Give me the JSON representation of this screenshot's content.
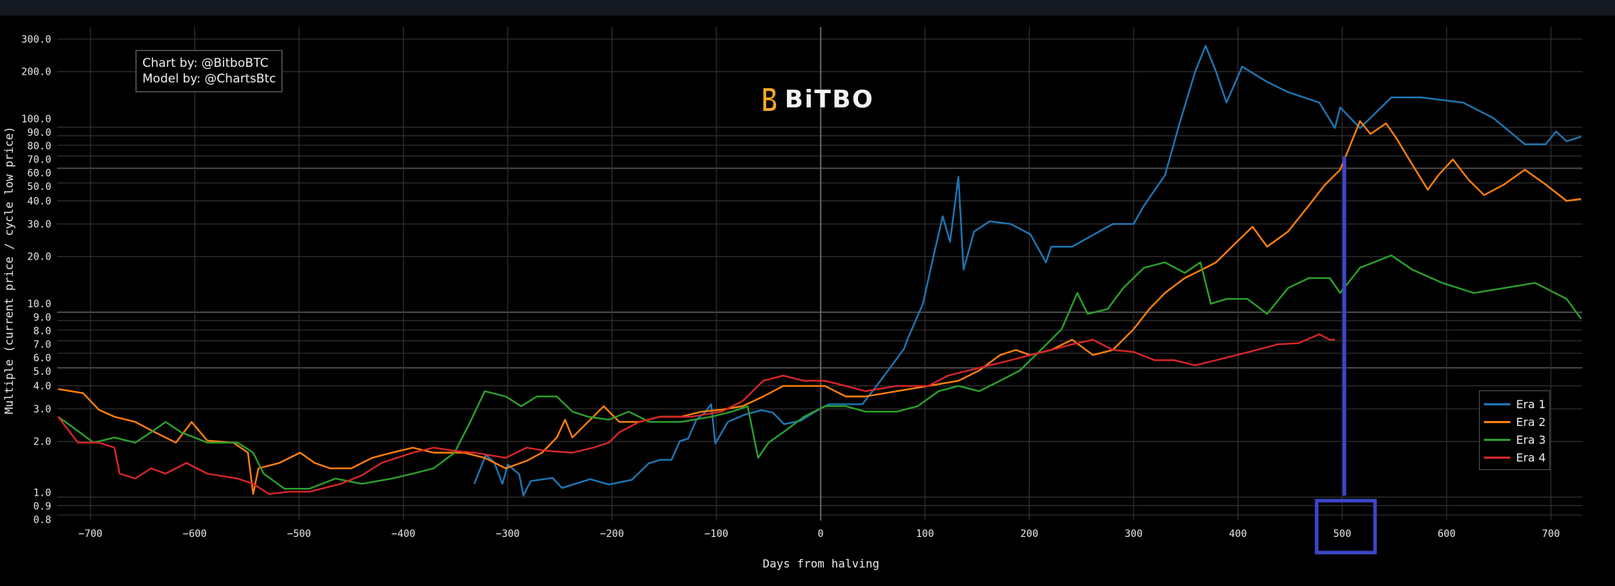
{
  "chart_data": {
    "type": "line",
    "title": "",
    "xlabel": "Days from halving",
    "ylabel": "Multiple (current price / cycle low price)",
    "xlim": [
      -730,
      730
    ],
    "ylim": [
      0.75,
      340
    ],
    "yscale": "log",
    "grid": true,
    "legend_position": "bottom-right",
    "x_ticks": [
      -700,
      -600,
      -500,
      -400,
      -300,
      -200,
      -100,
      0,
      100,
      200,
      300,
      400,
      500,
      600,
      700
    ],
    "x_tick_labels": [
      "−700",
      "−600",
      "−500",
      "−400",
      "−300",
      "−200",
      "−100",
      "0",
      "100",
      "200",
      "300",
      "400",
      "500",
      "600",
      "700"
    ],
    "y_ticks": [
      300,
      200,
      100,
      90,
      80,
      70,
      60,
      50,
      40,
      30,
      20,
      10,
      9,
      8,
      7,
      6,
      5,
      4,
      3,
      2,
      1,
      0.9,
      0.8
    ],
    "y_tick_labels": [
      "300.0",
      "200.0",
      "100.0",
      "90.0",
      "80.0",
      "70.0",
      "60.0",
      "50.0",
      "40.0",
      "30.0",
      "20.0",
      "10.0",
      "9.0",
      "8.0",
      "7.0",
      "6.0",
      "5.0",
      "4.0",
      "3.0",
      "2.0",
      "1.0",
      "0.9",
      "0.8"
    ],
    "series": [
      {
        "name": "Era 1",
        "color": "#1f77b4",
        "points": [
          [
            -332,
            1.18
          ],
          [
            -321,
            1.69
          ],
          [
            -313,
            1.54
          ],
          [
            -305,
            1.18
          ],
          [
            -300,
            1.5
          ],
          [
            -289,
            1.33
          ],
          [
            -285,
            1.02
          ],
          [
            -278,
            1.22
          ],
          [
            -257,
            1.27
          ],
          [
            -248,
            1.12
          ],
          [
            -221,
            1.25
          ],
          [
            -203,
            1.17
          ],
          [
            -181,
            1.24
          ],
          [
            -165,
            1.52
          ],
          [
            -154,
            1.59
          ],
          [
            -143,
            1.59
          ],
          [
            -135,
            2.01
          ],
          [
            -127,
            2.07
          ],
          [
            -119,
            2.63
          ],
          [
            -111,
            2.87
          ],
          [
            -105,
            3.18
          ],
          [
            -101,
            1.95
          ],
          [
            -89,
            2.55
          ],
          [
            -73,
            2.79
          ],
          [
            -57,
            2.95
          ],
          [
            -46,
            2.87
          ],
          [
            -35,
            2.48
          ],
          [
            -19,
            2.59
          ],
          [
            -3,
            2.95
          ],
          [
            8,
            3.18
          ],
          [
            40,
            3.18
          ],
          [
            54,
            4.02
          ],
          [
            65,
            4.87
          ],
          [
            80,
            6.35
          ],
          [
            83,
            7.1
          ],
          [
            98,
            11.1
          ],
          [
            108,
            19.9
          ],
          [
            117,
            33
          ],
          [
            124,
            24
          ],
          [
            132,
            54
          ],
          [
            137,
            17
          ],
          [
            147,
            27.3
          ],
          [
            162,
            31
          ],
          [
            182,
            30
          ],
          [
            201,
            26.4
          ],
          [
            216,
            18.6
          ],
          [
            221,
            22.6
          ],
          [
            241,
            22.6
          ],
          [
            280,
            30
          ],
          [
            300,
            30
          ],
          [
            310,
            37.8
          ],
          [
            330,
            55
          ],
          [
            344,
            105
          ],
          [
            359,
            200
          ],
          [
            369,
            276
          ],
          [
            379,
            200
          ],
          [
            389,
            136
          ],
          [
            404,
            213
          ],
          [
            428,
            176
          ],
          [
            448,
            155
          ],
          [
            478,
            136
          ],
          [
            493,
            99
          ],
          [
            498,
            128
          ],
          [
            517,
            99
          ],
          [
            547,
            145
          ],
          [
            576,
            145
          ],
          [
            616,
            136
          ],
          [
            645,
            112
          ],
          [
            675,
            81
          ],
          [
            695,
            81
          ],
          [
            705,
            95
          ],
          [
            715,
            84
          ],
          [
            729,
            89
          ]
        ]
      },
      {
        "name": "Era 2",
        "color": "#ff7f0e",
        "points": [
          [
            -731,
            3.84
          ],
          [
            -707,
            3.65
          ],
          [
            -692,
            2.97
          ],
          [
            -677,
            2.72
          ],
          [
            -657,
            2.55
          ],
          [
            -638,
            2.24
          ],
          [
            -618,
            1.97
          ],
          [
            -603,
            2.55
          ],
          [
            -588,
            2.02
          ],
          [
            -563,
            1.97
          ],
          [
            -549,
            1.74
          ],
          [
            -544,
            1.04
          ],
          [
            -539,
            1.43
          ],
          [
            -519,
            1.53
          ],
          [
            -499,
            1.74
          ],
          [
            -485,
            1.53
          ],
          [
            -470,
            1.43
          ],
          [
            -450,
            1.43
          ],
          [
            -430,
            1.63
          ],
          [
            -411,
            1.74
          ],
          [
            -391,
            1.85
          ],
          [
            -371,
            1.74
          ],
          [
            -342,
            1.74
          ],
          [
            -322,
            1.63
          ],
          [
            -302,
            1.43
          ],
          [
            -282,
            1.57
          ],
          [
            -267,
            1.74
          ],
          [
            -253,
            2.1
          ],
          [
            -245,
            2.62
          ],
          [
            -238,
            2.1
          ],
          [
            -223,
            2.55
          ],
          [
            -208,
            3.1
          ],
          [
            -193,
            2.55
          ],
          [
            -174,
            2.55
          ],
          [
            -154,
            2.72
          ],
          [
            -134,
            2.72
          ],
          [
            -114,
            2.9
          ],
          [
            -95,
            2.97
          ],
          [
            -75,
            3.1
          ],
          [
            -55,
            3.5
          ],
          [
            -36,
            3.99
          ],
          [
            -16,
            3.99
          ],
          [
            4,
            3.99
          ],
          [
            24,
            3.5
          ],
          [
            43,
            3.5
          ],
          [
            73,
            3.74
          ],
          [
            103,
            3.99
          ],
          [
            132,
            4.26
          ],
          [
            152,
            4.84
          ],
          [
            172,
            5.87
          ],
          [
            187,
            6.25
          ],
          [
            201,
            5.87
          ],
          [
            221,
            6.25
          ],
          [
            241,
            7.1
          ],
          [
            261,
            5.87
          ],
          [
            280,
            6.25
          ],
          [
            300,
            8.1
          ],
          [
            315,
            10.4
          ],
          [
            330,
            12.7
          ],
          [
            349,
            15.3
          ],
          [
            369,
            17.4
          ],
          [
            379,
            18.6
          ],
          [
            399,
            24
          ],
          [
            414,
            29
          ],
          [
            428,
            22.6
          ],
          [
            448,
            27.3
          ],
          [
            468,
            37.8
          ],
          [
            483,
            48.6
          ],
          [
            498,
            59
          ],
          [
            508,
            81
          ],
          [
            517,
            108
          ],
          [
            527,
            92
          ],
          [
            542,
            105
          ],
          [
            552,
            87
          ],
          [
            567,
            63
          ],
          [
            582,
            46
          ],
          [
            592,
            55
          ],
          [
            606,
            67
          ],
          [
            621,
            52
          ],
          [
            636,
            43
          ],
          [
            655,
            49
          ],
          [
            675,
            59
          ],
          [
            695,
            49
          ],
          [
            715,
            40
          ],
          [
            729,
            41
          ]
        ]
      },
      {
        "name": "Era 3",
        "color": "#2ca02c",
        "points": [
          [
            -731,
            2.72
          ],
          [
            -717,
            2.39
          ],
          [
            -697,
            1.97
          ],
          [
            -677,
            2.1
          ],
          [
            -657,
            1.97
          ],
          [
            -642,
            2.24
          ],
          [
            -628,
            2.55
          ],
          [
            -613,
            2.24
          ],
          [
            -588,
            1.97
          ],
          [
            -559,
            1.97
          ],
          [
            -544,
            1.74
          ],
          [
            -534,
            1.34
          ],
          [
            -514,
            1.11
          ],
          [
            -490,
            1.11
          ],
          [
            -465,
            1.26
          ],
          [
            -440,
            1.18
          ],
          [
            -411,
            1.26
          ],
          [
            -391,
            1.34
          ],
          [
            -371,
            1.43
          ],
          [
            -351,
            1.74
          ],
          [
            -336,
            2.55
          ],
          [
            -322,
            3.74
          ],
          [
            -302,
            3.5
          ],
          [
            -287,
            3.1
          ],
          [
            -272,
            3.5
          ],
          [
            -253,
            3.5
          ],
          [
            -238,
            2.9
          ],
          [
            -223,
            2.72
          ],
          [
            -203,
            2.62
          ],
          [
            -184,
            2.9
          ],
          [
            -164,
            2.55
          ],
          [
            -134,
            2.55
          ],
          [
            -105,
            2.72
          ],
          [
            -85,
            2.9
          ],
          [
            -70,
            3.1
          ],
          [
            -60,
            1.63
          ],
          [
            -50,
            1.97
          ],
          [
            -36,
            2.24
          ],
          [
            -16,
            2.72
          ],
          [
            4,
            3.1
          ],
          [
            24,
            3.1
          ],
          [
            43,
            2.9
          ],
          [
            73,
            2.9
          ],
          [
            93,
            3.1
          ],
          [
            113,
            3.74
          ],
          [
            132,
            3.99
          ],
          [
            152,
            3.74
          ],
          [
            172,
            4.26
          ],
          [
            191,
            4.84
          ],
          [
            211,
            6.25
          ],
          [
            231,
            8.1
          ],
          [
            246,
            12.7
          ],
          [
            256,
            9.8
          ],
          [
            275,
            10.4
          ],
          [
            290,
            13.5
          ],
          [
            310,
            17.4
          ],
          [
            330,
            18.6
          ],
          [
            349,
            16.3
          ],
          [
            364,
            18.6
          ],
          [
            374,
            11.1
          ],
          [
            389,
            11.8
          ],
          [
            409,
            11.8
          ],
          [
            428,
            9.8
          ],
          [
            448,
            13.5
          ],
          [
            468,
            15.3
          ],
          [
            488,
            15.3
          ],
          [
            498,
            12.7
          ],
          [
            517,
            17.4
          ],
          [
            547,
            20.3
          ],
          [
            567,
            17
          ],
          [
            596,
            14.4
          ],
          [
            626,
            12.7
          ],
          [
            655,
            13.5
          ],
          [
            685,
            14.4
          ],
          [
            715,
            11.8
          ],
          [
            729,
            9.2
          ]
        ]
      },
      {
        "name": "Era 4",
        "color": "#d62728",
        "points": [
          [
            -731,
            2.72
          ],
          [
            -712,
            1.97
          ],
          [
            -692,
            1.97
          ],
          [
            -677,
            1.85
          ],
          [
            -672,
            1.34
          ],
          [
            -657,
            1.26
          ],
          [
            -642,
            1.43
          ],
          [
            -628,
            1.34
          ],
          [
            -608,
            1.53
          ],
          [
            -588,
            1.34
          ],
          [
            -559,
            1.26
          ],
          [
            -544,
            1.18
          ],
          [
            -529,
            1.04
          ],
          [
            -509,
            1.07
          ],
          [
            -490,
            1.07
          ],
          [
            -460,
            1.18
          ],
          [
            -440,
            1.31
          ],
          [
            -421,
            1.53
          ],
          [
            -391,
            1.74
          ],
          [
            -371,
            1.85
          ],
          [
            -351,
            1.78
          ],
          [
            -332,
            1.74
          ],
          [
            -302,
            1.63
          ],
          [
            -282,
            1.85
          ],
          [
            -263,
            1.78
          ],
          [
            -238,
            1.74
          ],
          [
            -218,
            1.85
          ],
          [
            -203,
            1.97
          ],
          [
            -193,
            2.24
          ],
          [
            -174,
            2.55
          ],
          [
            -154,
            2.72
          ],
          [
            -124,
            2.72
          ],
          [
            -95,
            2.9
          ],
          [
            -75,
            3.3
          ],
          [
            -55,
            4.26
          ],
          [
            -36,
            4.54
          ],
          [
            -16,
            4.26
          ],
          [
            4,
            4.26
          ],
          [
            24,
            3.99
          ],
          [
            43,
            3.74
          ],
          [
            73,
            3.99
          ],
          [
            103,
            3.99
          ],
          [
            122,
            4.54
          ],
          [
            142,
            4.84
          ],
          [
            162,
            5.16
          ],
          [
            182,
            5.5
          ],
          [
            201,
            5.87
          ],
          [
            221,
            6.25
          ],
          [
            241,
            6.7
          ],
          [
            261,
            7.1
          ],
          [
            280,
            6.25
          ],
          [
            300,
            6.1
          ],
          [
            320,
            5.5
          ],
          [
            339,
            5.5
          ],
          [
            359,
            5.16
          ],
          [
            379,
            5.5
          ],
          [
            399,
            5.87
          ],
          [
            418,
            6.25
          ],
          [
            438,
            6.7
          ],
          [
            458,
            6.8
          ],
          [
            478,
            7.6
          ],
          [
            488,
            7.1
          ],
          [
            493,
            7.1
          ]
        ]
      }
    ],
    "annotations": {
      "credit_line1": "Chart by: @BitboBTC",
      "credit_line2": "Model by: @ChartsBtc",
      "highlight_x": 500,
      "highlight_color": "#3c46c8"
    }
  },
  "logo": {
    "text": "BiTBO",
    "color": "#f5a623"
  },
  "legend": {
    "items": [
      "Era 1",
      "Era 2",
      "Era 3",
      "Era 4"
    ]
  }
}
